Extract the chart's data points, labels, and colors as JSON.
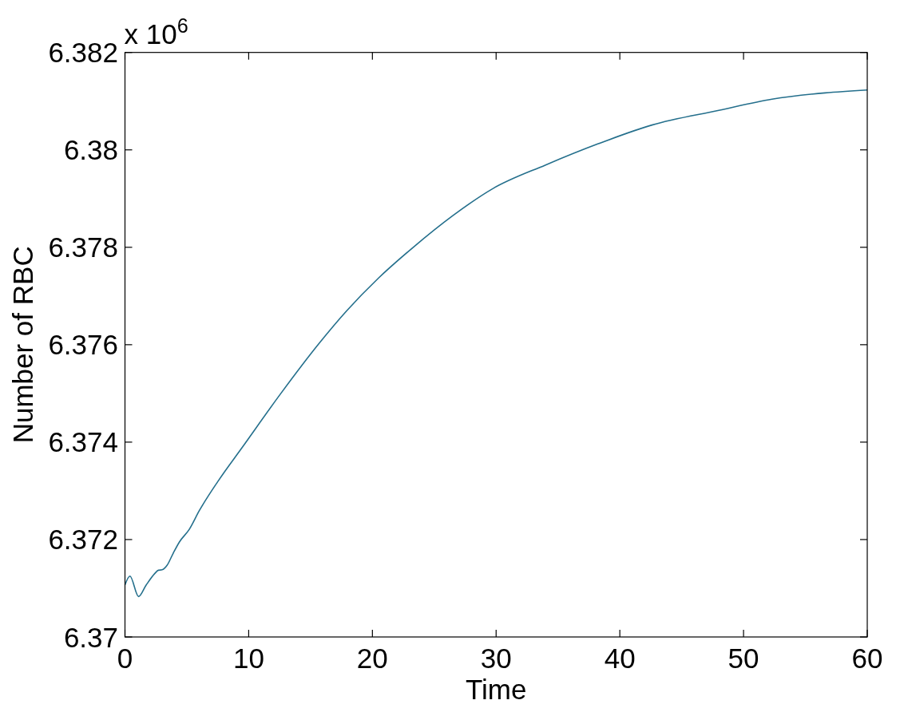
{
  "chart_data": {
    "type": "line",
    "xlabel": "Time",
    "ylabel": "Number of RBC",
    "annotations": [
      "x 10$^{6}$"
    ],
    "xlim": [
      0,
      60
    ],
    "xticks": [
      0,
      10,
      20,
      30,
      40,
      50,
      60
    ],
    "ylim": [
      6.37,
      6.382
    ],
    "yticks": [
      6.37,
      6.372,
      6.374,
      6.376,
      6.378,
      6.38,
      6.382
    ],
    "series": [
      {
        "color": "#246f8c",
        "x": [
          0,
          0.4,
          1.1,
          1.7,
          2.4,
          2.7,
          3.0,
          3.4,
          3.9,
          4.4,
          5.2,
          6.0,
          7.5,
          9.5,
          12.6,
          15.7,
          17.9,
          20.5,
          23.3,
          26.5,
          29.7,
          34,
          38.3,
          42.6,
          48,
          52.3,
          56.6,
          60
        ],
        "values": [
          6.37107,
          6.37125,
          6.37083,
          6.37106,
          6.3713,
          6.37137,
          6.37138,
          6.37147,
          6.37172,
          6.37195,
          6.37221,
          6.37259,
          6.37319,
          6.3739,
          6.375,
          6.37603,
          6.37669,
          6.37737,
          6.378,
          6.37865,
          6.3792,
          6.37969,
          6.38013,
          6.38051,
          6.38081,
          6.38104,
          6.38117,
          6.38123
        ]
      }
    ]
  }
}
